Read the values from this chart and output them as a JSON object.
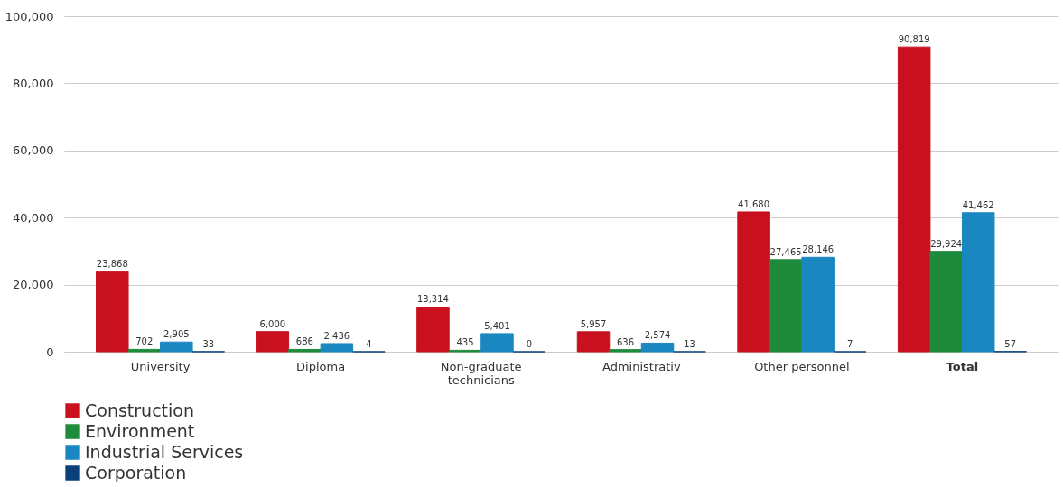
{
  "chart_data": {
    "type": "bar",
    "categories": [
      "University",
      "Diploma",
      "Non-graduate technicians",
      "Administrativ",
      "Other personnel",
      "Total"
    ],
    "series": [
      {
        "name": "Construction",
        "color": "#c8101e",
        "values": [
          23868,
          6000,
          13314,
          5957,
          41680,
          90819
        ],
        "value_labels": [
          "23,868",
          "6,000",
          "13,314",
          "5,957",
          "41,680",
          "90,819"
        ]
      },
      {
        "name": "Environment",
        "color": "#1e8a3c",
        "values": [
          702,
          686,
          435,
          636,
          27465,
          29924
        ],
        "value_labels": [
          "702",
          "686",
          "435",
          "636",
          "27,465",
          "29,924"
        ]
      },
      {
        "name": "Industrial Services",
        "color": "#1a87c0",
        "values": [
          2905,
          2436,
          5401,
          2574,
          28146,
          41462
        ],
        "value_labels": [
          "2,905",
          "2,436",
          "5,401",
          "2,574",
          "28,146",
          "41,462"
        ]
      },
      {
        "name": "Corporation",
        "color": "#0a3f7a",
        "values": [
          33,
          4,
          0,
          13,
          7,
          57
        ],
        "value_labels": [
          "33",
          "4",
          "0",
          "13",
          "7",
          "57"
        ]
      }
    ],
    "ylim": [
      0,
      100000
    ],
    "yticks": [
      0,
      {
        "value": 20000,
        "label": "20,000"
      },
      {
        "value": 40000,
        "label": "40,000"
      },
      {
        "value": 60000,
        "label": "60,000"
      },
      {
        "value": 80000,
        "label": "80,000"
      },
      {
        "value": 100000,
        "label": "100,000"
      }
    ],
    "grid": "y",
    "legend": "bottom left"
  }
}
